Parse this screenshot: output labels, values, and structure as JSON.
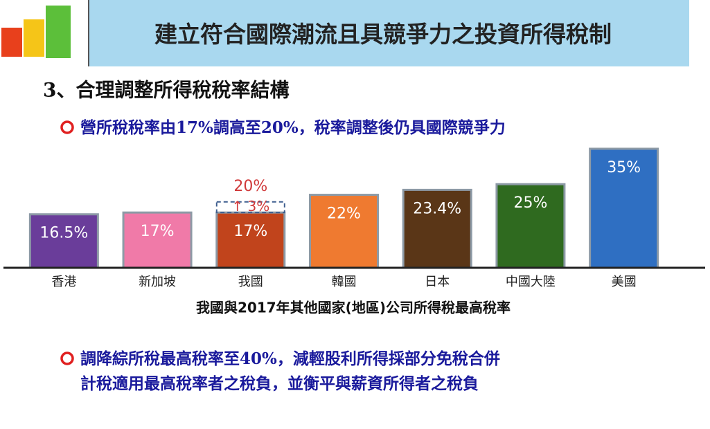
{
  "header": {
    "title": "建立符合國際潮流且具競爭力之投資所得稅制"
  },
  "section": "3、合理調整所得稅稅率結構",
  "bullets": [
    [
      "營所稅稅率由17%調高至20%，稅率調整後仍具國際競爭力"
    ],
    [
      "調降綜所稅最高稅率至40%，減輕股利所得採部分免稅合併",
      "計稅適用最高稅率者之稅負，並衡平與薪資所得者之稅負"
    ]
  ],
  "chart_data": {
    "type": "bar",
    "caption": "我國與2017年其他國家(地區)公司所得稅最高稅率",
    "categories": [
      "香港",
      "新加坡",
      "我國",
      "韓國",
      "日本",
      "中國大陸",
      "美國"
    ],
    "values": [
      16.5,
      17,
      17,
      22,
      23.4,
      25,
      35
    ],
    "value_labels": [
      "16.5%",
      "17%",
      "17%",
      "22%",
      "23.4%",
      "25%",
      "35%"
    ],
    "colors": [
      "#6a3d9a",
      "#f07aa8",
      "#c1441c",
      "#ef7a30",
      "#5a3617",
      "#2f6a1f",
      "#2f6fc2"
    ],
    "increase_values": [
      null,
      null,
      3,
      null,
      null,
      null,
      null
    ],
    "increase_labels": [
      null,
      null,
      "↑ 3%",
      null,
      null,
      null,
      null
    ],
    "new_rate": {
      "value": 20,
      "label": "20%"
    },
    "ylim": [
      10,
      35
    ]
  }
}
